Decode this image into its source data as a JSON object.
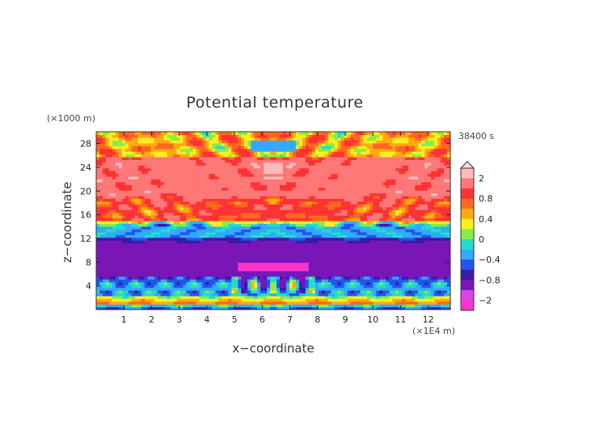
{
  "chart_data": {
    "type": "heatmap",
    "title": "Potential temperature",
    "xlabel": "x−coordinate",
    "ylabel": "z−coordinate",
    "x_unit": "(×1E4 m)",
    "y_unit": "(×1000 m)",
    "time_label": "38400 s",
    "xlim": [
      0,
      12.8
    ],
    "ylim": [
      0,
      30
    ],
    "x_ticks": [
      1,
      2,
      3,
      4,
      5,
      6,
      7,
      8,
      9,
      10,
      11,
      12
    ],
    "y_ticks": [
      4,
      8,
      12,
      16,
      20,
      24,
      28
    ],
    "colorbar": {
      "tick_labels": [
        "2",
        "0.8",
        "0.4",
        "0",
        "−0.4",
        "−0.8",
        "−2"
      ],
      "tick_values": [
        2,
        0.8,
        0.4,
        0,
        -0.4,
        -0.8,
        -2
      ],
      "levels": [
        -2.4,
        -2,
        -1.2,
        -0.8,
        -0.6,
        -0.4,
        -0.2,
        0,
        0.2,
        0.4,
        0.6,
        0.8,
        1.2,
        2,
        2.4
      ],
      "colors": [
        "#ff33cc",
        "#dd44ee",
        "#7a16b8",
        "#3a1aa8",
        "#2255ee",
        "#33aaff",
        "#22ddcc",
        "#88ee44",
        "#ffee22",
        "#ffaa11",
        "#ff6622",
        "#ff3333",
        "#ff7777",
        "#ffbbbb"
      ],
      "top_arrow_color": "#ffe0e0"
    },
    "field_description_layers": [
      {
        "z_range": [
          0,
          0.8
        ],
        "value": -0.8
      },
      {
        "z_range": [
          0.8,
          2.2
        ],
        "value": 0.6
      },
      {
        "z_range": [
          2.2,
          5.5
        ],
        "value": -0.3
      },
      {
        "z_range": [
          5.5,
          12
        ],
        "value": -1.0
      },
      {
        "z_range": [
          12,
          15
        ],
        "value": -0.3
      },
      {
        "z_range": [
          15,
          19
        ],
        "value": 0.9
      },
      {
        "z_range": [
          19,
          26
        ],
        "value": 1.5
      },
      {
        "z_range": [
          26,
          30
        ],
        "value": 0.5
      }
    ]
  }
}
